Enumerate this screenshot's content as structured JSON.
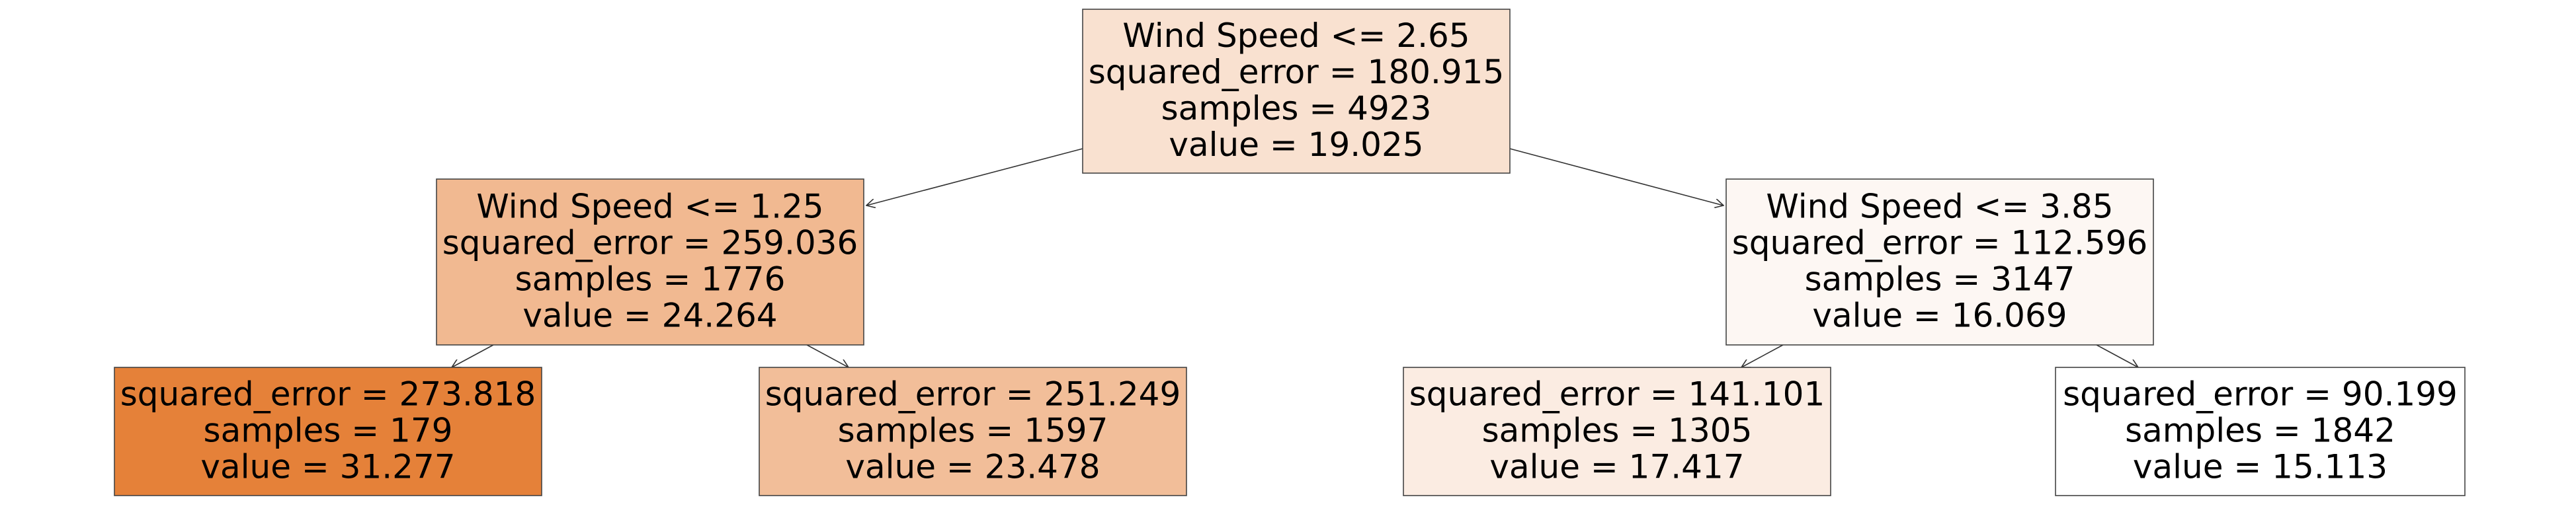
{
  "diagram": {
    "type": "regression-tree",
    "nodes": [
      {
        "id": "root",
        "lines": [
          "Wind Speed <= 2.65",
          "squared_error = 180.915",
          "samples = 4923",
          "value = 19.025"
        ],
        "fill": "#f9e1d0"
      },
      {
        "id": "l",
        "lines": [
          "Wind Speed <= 1.25",
          "squared_error = 259.036",
          "samples = 1776",
          "value = 24.264"
        ],
        "fill": "#f1b991"
      },
      {
        "id": "r",
        "lines": [
          "Wind Speed <= 3.85",
          "squared_error = 112.596",
          "samples = 3147",
          "value = 16.069"
        ],
        "fill": "#fdf7f3"
      },
      {
        "id": "ll",
        "lines": [
          "squared_error = 273.818",
          "samples = 179",
          "value = 31.277"
        ],
        "fill": "#e58139"
      },
      {
        "id": "lr",
        "lines": [
          "squared_error = 251.249",
          "samples = 1597",
          "value = 23.478"
        ],
        "fill": "#f2be99"
      },
      {
        "id": "rl",
        "lines": [
          "squared_error = 141.101",
          "samples = 1305",
          "value = 17.417"
        ],
        "fill": "#fbece2"
      },
      {
        "id": "rr",
        "lines": [
          "squared_error = 90.199",
          "samples = 1842",
          "value = 15.113"
        ],
        "fill": "#ffffff"
      }
    ],
    "edges": [
      {
        "from": "root",
        "to": "l"
      },
      {
        "from": "root",
        "to": "r"
      },
      {
        "from": "l",
        "to": "ll"
      },
      {
        "from": "l",
        "to": "lr"
      },
      {
        "from": "r",
        "to": "rl"
      },
      {
        "from": "r",
        "to": "rr"
      }
    ]
  }
}
